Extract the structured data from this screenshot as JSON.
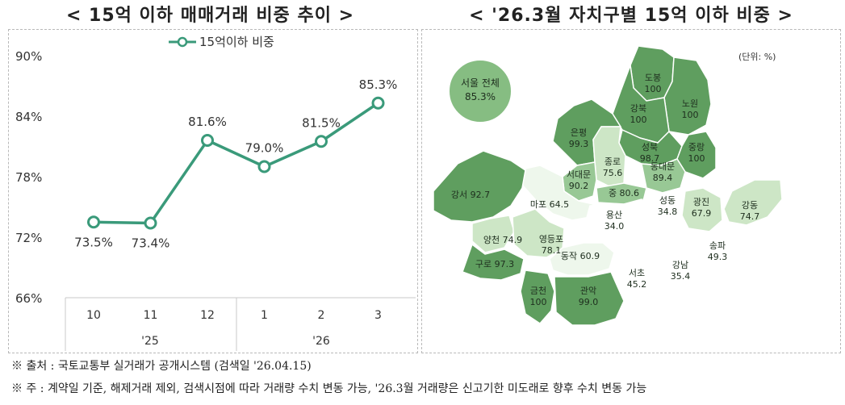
{
  "left_title": "< 15억 이하 매매거래 비중 추이 >",
  "right_title": "< '26.3월 자치구별 15억 이하 비중 >",
  "unit_label": "(단위: %)",
  "seoul_total": {
    "label": "서울 전체",
    "value": "85.3%"
  },
  "footnotes": {
    "source": "※ 출처 : 국토교통부 실거래가 공개시스템 (검색일 '26.04.15)",
    "note": "※ 주 : 계약일 기준, 해제거래 제외, 검색시점에 따라 거래량 수치 변동 가능, '26.3월 거래량은 신고기한 미도래로 향후 수치 변동 가능"
  },
  "colors": {
    "line": "#3a9a7a",
    "dark": "#5f9e5f",
    "mid": "#98c895",
    "light": "#cde6c6",
    "pale": "#eef7ec",
    "white": "#ffffff",
    "border": "#b9b9b9"
  },
  "chart_data": {
    "type": "line",
    "categories": [
      "10",
      "11",
      "12",
      "1",
      "2",
      "3"
    ],
    "year_labels": [
      "'25",
      "'26"
    ],
    "series": [
      {
        "name": "15억이하 비중",
        "values": [
          73.5,
          73.4,
          81.6,
          79.0,
          81.5,
          85.3
        ],
        "labels": [
          "73.5%",
          "73.4%",
          "81.6%",
          "79.0%",
          "81.5%",
          "85.3%"
        ]
      }
    ],
    "ylim": [
      66,
      90
    ],
    "yticks": [
      66,
      72,
      78,
      84,
      90
    ],
    "ytick_labels": [
      "66%",
      "72%",
      "78%",
      "84%",
      "90%"
    ],
    "legend": "top"
  },
  "districts": [
    {
      "id": "dobong",
      "name": "도봉",
      "value": "100",
      "level": "dark"
    },
    {
      "id": "nowon",
      "name": "노원",
      "value": "100",
      "level": "dark"
    },
    {
      "id": "gangbuk",
      "name": "강북",
      "value": "100",
      "level": "dark"
    },
    {
      "id": "eunpyeong",
      "name": "은평",
      "value": "99.3",
      "level": "dark"
    },
    {
      "id": "seongbuk",
      "name": "성북",
      "value": "98.7",
      "level": "dark"
    },
    {
      "id": "jungnang",
      "name": "중랑",
      "value": "100",
      "level": "dark"
    },
    {
      "id": "jongno",
      "name": "종로",
      "value": "75.6",
      "level": "light"
    },
    {
      "id": "dongdaemun",
      "name": "동대문",
      "value": "89.4",
      "level": "mid"
    },
    {
      "id": "seodaemun",
      "name": "서대문",
      "value": "90.2",
      "level": "mid"
    },
    {
      "id": "jung",
      "name": "중",
      "value": "80.6",
      "level": "mid"
    },
    {
      "id": "mapo",
      "name": "마포",
      "value": "64.5",
      "level": "pale"
    },
    {
      "id": "gangseo",
      "name": "강서",
      "value": "92.7",
      "level": "dark"
    },
    {
      "id": "yongsan",
      "name": "용산",
      "value": "34.0",
      "level": "white"
    },
    {
      "id": "seongdong",
      "name": "성동",
      "value": "34.8",
      "level": "white"
    },
    {
      "id": "gwangjin",
      "name": "광진",
      "value": "67.9",
      "level": "light"
    },
    {
      "id": "gangdong",
      "name": "강동",
      "value": "74.7",
      "level": "light"
    },
    {
      "id": "yangcheon",
      "name": "양천",
      "value": "74.9",
      "level": "light"
    },
    {
      "id": "yeongdeungpo",
      "name": "영등포",
      "value": "78.1",
      "level": "light"
    },
    {
      "id": "guro",
      "name": "구로",
      "value": "97.3",
      "level": "dark"
    },
    {
      "id": "dongjak",
      "name": "동작",
      "value": "60.9",
      "level": "pale"
    },
    {
      "id": "seocho",
      "name": "서초",
      "value": "45.2",
      "level": "white"
    },
    {
      "id": "gangnam",
      "name": "강남",
      "value": "35.4",
      "level": "white"
    },
    {
      "id": "songpa",
      "name": "송파",
      "value": "49.3",
      "level": "white"
    },
    {
      "id": "geumcheon",
      "name": "금천",
      "value": "100",
      "level": "dark"
    },
    {
      "id": "gwanak",
      "name": "관악",
      "value": "99.0",
      "level": "dark"
    }
  ]
}
